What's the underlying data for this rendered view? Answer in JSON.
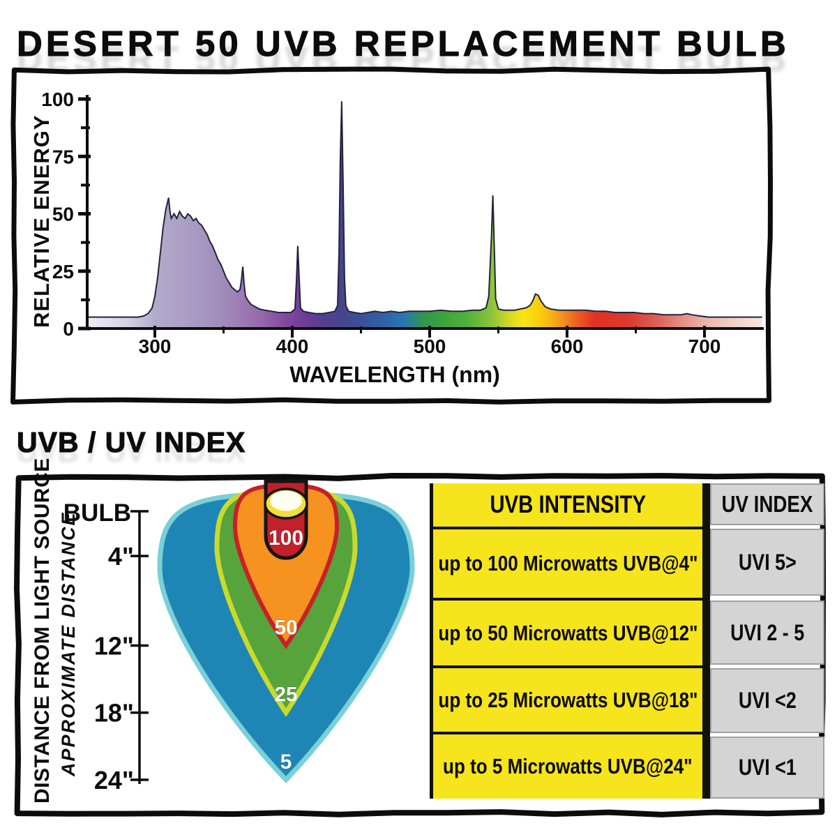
{
  "page": {
    "title": "DESERT 50 UVB REPLACEMENT BULB",
    "section2_title": "UVB / UV INDEX"
  },
  "chart_data": {
    "type": "area",
    "title": "DESERT 50 UVB REPLACEMENT BULB spectral output",
    "xlabel": "WAVELENGTH (nm)",
    "ylabel": "RELATIVE ENERGY",
    "xlim": [
      251,
      742
    ],
    "ylim": [
      0,
      100
    ],
    "x_major_ticks": [
      300,
      400,
      500,
      600,
      700
    ],
    "x_minor_ticks": [
      350,
      450,
      550,
      650
    ],
    "y_major_ticks": [
      0,
      25,
      50,
      75,
      100
    ],
    "y_minor_ticks": [
      12.5,
      37.5,
      62.5,
      87.5
    ],
    "grid": false,
    "legend": "none",
    "notable_peaks": [
      {
        "wavelength_nm": 310,
        "relative_energy": 57
      },
      {
        "wavelength_nm": 365,
        "relative_energy": 27
      },
      {
        "wavelength_nm": 405,
        "relative_energy": 36
      },
      {
        "wavelength_nm": 436,
        "relative_energy": 99
      },
      {
        "wavelength_nm": 546,
        "relative_energy": 58
      },
      {
        "wavelength_nm": 578,
        "relative_energy": 15
      }
    ],
    "series": [
      {
        "name": "relative energy",
        "points": [
          [
            251,
            5
          ],
          [
            262,
            5
          ],
          [
            272,
            5
          ],
          [
            281,
            5
          ],
          [
            288,
            5
          ],
          [
            292,
            5.5
          ],
          [
            295,
            6.5
          ],
          [
            298,
            9
          ],
          [
            300,
            14
          ],
          [
            302,
            22
          ],
          [
            304,
            33
          ],
          [
            306,
            44
          ],
          [
            308,
            52
          ],
          [
            310,
            57
          ],
          [
            311,
            51
          ],
          [
            312,
            48
          ],
          [
            314,
            50
          ],
          [
            316,
            48
          ],
          [
            318,
            51
          ],
          [
            320,
            49
          ],
          [
            322,
            48
          ],
          [
            324,
            50
          ],
          [
            326,
            49
          ],
          [
            328,
            47
          ],
          [
            330,
            48
          ],
          [
            332,
            46
          ],
          [
            334,
            45
          ],
          [
            336,
            43
          ],
          [
            338,
            41
          ],
          [
            340,
            38
          ],
          [
            342,
            36
          ],
          [
            344,
            33
          ],
          [
            346,
            30
          ],
          [
            348,
            28
          ],
          [
            350,
            25
          ],
          [
            352,
            22
          ],
          [
            354,
            20
          ],
          [
            356,
            18
          ],
          [
            358,
            17
          ],
          [
            360,
            16
          ],
          [
            362,
            17
          ],
          [
            363,
            21
          ],
          [
            364,
            27
          ],
          [
            365,
            19
          ],
          [
            366,
            14
          ],
          [
            368,
            12
          ],
          [
            370,
            10.5
          ],
          [
            373,
            9.5
          ],
          [
            376,
            8.5
          ],
          [
            380,
            8
          ],
          [
            385,
            7.5
          ],
          [
            390,
            7
          ],
          [
            395,
            7
          ],
          [
            399,
            7
          ],
          [
            402,
            8.5
          ],
          [
            403,
            20
          ],
          [
            404,
            36
          ],
          [
            405,
            22
          ],
          [
            406,
            9
          ],
          [
            408,
            7.5
          ],
          [
            412,
            7
          ],
          [
            417,
            6.5
          ],
          [
            422,
            6.5
          ],
          [
            427,
            7
          ],
          [
            431,
            7.5
          ],
          [
            433,
            10
          ],
          [
            434,
            32
          ],
          [
            435,
            74
          ],
          [
            436,
            99
          ],
          [
            437,
            63
          ],
          [
            438,
            22
          ],
          [
            439,
            10
          ],
          [
            441,
            7.5
          ],
          [
            445,
            7
          ],
          [
            450,
            6.5
          ],
          [
            455,
            7
          ],
          [
            460,
            7.5
          ],
          [
            466,
            7
          ],
          [
            472,
            7.5
          ],
          [
            478,
            7
          ],
          [
            485,
            7.5
          ],
          [
            492,
            7.5
          ],
          [
            500,
            7.5
          ],
          [
            508,
            8
          ],
          [
            516,
            7.5
          ],
          [
            524,
            7.5
          ],
          [
            531,
            8
          ],
          [
            537,
            8
          ],
          [
            541,
            9
          ],
          [
            543,
            14
          ],
          [
            545,
            40
          ],
          [
            546,
            58
          ],
          [
            547,
            36
          ],
          [
            548,
            13
          ],
          [
            550,
            8.5
          ],
          [
            554,
            8
          ],
          [
            558,
            8
          ],
          [
            562,
            8
          ],
          [
            566,
            8.5
          ],
          [
            570,
            9
          ],
          [
            573,
            10
          ],
          [
            575,
            12
          ],
          [
            577,
            15
          ],
          [
            579,
            14.5
          ],
          [
            581,
            12
          ],
          [
            584,
            9.5
          ],
          [
            588,
            8.5
          ],
          [
            594,
            8
          ],
          [
            600,
            8
          ],
          [
            607,
            8
          ],
          [
            614,
            8
          ],
          [
            621,
            7.5
          ],
          [
            628,
            7.5
          ],
          [
            635,
            7
          ],
          [
            642,
            7
          ],
          [
            649,
            7
          ],
          [
            656,
            6.5
          ],
          [
            663,
            6.5
          ],
          [
            670,
            6
          ],
          [
            677,
            6
          ],
          [
            683,
            6
          ],
          [
            687,
            6.5
          ],
          [
            691,
            6
          ],
          [
            696,
            5.5
          ],
          [
            703,
            5
          ],
          [
            712,
            5
          ],
          [
            722,
            5
          ],
          [
            732,
            5
          ],
          [
            742,
            5
          ]
        ]
      }
    ],
    "spectrum_gradient": [
      {
        "nm": 251,
        "color": "#f0edf7"
      },
      {
        "nm": 280,
        "color": "#d6d0e4"
      },
      {
        "nm": 300,
        "color": "#b3abcb"
      },
      {
        "nm": 330,
        "color": "#a79ac2"
      },
      {
        "nm": 355,
        "color": "#9f86b8"
      },
      {
        "nm": 378,
        "color": "#9766aa"
      },
      {
        "nm": 395,
        "color": "#84489c"
      },
      {
        "nm": 408,
        "color": "#6f3d97"
      },
      {
        "nm": 422,
        "color": "#573e90"
      },
      {
        "nm": 436,
        "color": "#45458c"
      },
      {
        "nm": 452,
        "color": "#3a5298"
      },
      {
        "nm": 468,
        "color": "#2e64aa"
      },
      {
        "nm": 482,
        "color": "#2878b2"
      },
      {
        "nm": 495,
        "color": "#31954f"
      },
      {
        "nm": 510,
        "color": "#3da33f"
      },
      {
        "nm": 528,
        "color": "#52b13a"
      },
      {
        "nm": 545,
        "color": "#8bc43a"
      },
      {
        "nm": 558,
        "color": "#d4d923"
      },
      {
        "nm": 568,
        "color": "#f6e713"
      },
      {
        "nm": 583,
        "color": "#f9c60f"
      },
      {
        "nm": 596,
        "color": "#f5941d"
      },
      {
        "nm": 608,
        "color": "#ef5a22"
      },
      {
        "nm": 620,
        "color": "#e23125"
      },
      {
        "nm": 645,
        "color": "#da3a2f"
      },
      {
        "nm": 665,
        "color": "#dd5f53"
      },
      {
        "nm": 682,
        "color": "#e28b80"
      },
      {
        "nm": 700,
        "color": "#eab3a8"
      },
      {
        "nm": 720,
        "color": "#f0d0c6"
      },
      {
        "nm": 742,
        "color": "#f6e6de"
      }
    ],
    "curve_color": "#23233d"
  },
  "diagram": {
    "axis_label_bold": "DISTANCE FROM LIGHT SOURCE",
    "axis_label_italic": "APPROXIMATE DISTANCE",
    "bulb_label": "BULB",
    "distance_ticks": [
      {
        "label": "4\"",
        "inches": 4
      },
      {
        "label": "12\"",
        "inches": 12
      },
      {
        "label": "18\"",
        "inches": 18
      },
      {
        "label": "24\"",
        "inches": 24
      }
    ],
    "zones": [
      {
        "label": "5",
        "microwatts": 5,
        "reach_inches": 24,
        "fill": "#1e86b4",
        "border": "#7ad0d8"
      },
      {
        "label": "25",
        "microwatts": 25,
        "reach_inches": 18,
        "fill": "#57a33c",
        "border": "#c8da2b"
      },
      {
        "label": "50",
        "microwatts": 50,
        "reach_inches": 12,
        "fill": "#f69220",
        "border": "#c72127"
      },
      {
        "label": "100",
        "microwatts": 100,
        "reach_inches": 4,
        "fill": "#c2202a",
        "border": "#141414"
      }
    ],
    "bulb_colors": {
      "rim": "#f2df3a",
      "center": "#fffef2",
      "outline": "#141414"
    }
  },
  "table": {
    "col_headers": [
      "UVB INTENSITY",
      "UV INDEX"
    ],
    "rows": [
      {
        "intensity": "up to 100 Microwatts UVB@4\"",
        "index": "UVI 5>"
      },
      {
        "intensity": "up to 50 Microwatts UVB@12\"",
        "index": "UVI 2 - 5"
      },
      {
        "intensity": "up to 25 Microwatts UVB@18\"",
        "index": "UVI <2"
      },
      {
        "intensity": "up to 5 Microwatts UVB@24\"",
        "index": "UVI <1"
      }
    ],
    "colors": {
      "intensity_bg": "#f6e41c",
      "index_bg": "#d4d4d4"
    }
  }
}
